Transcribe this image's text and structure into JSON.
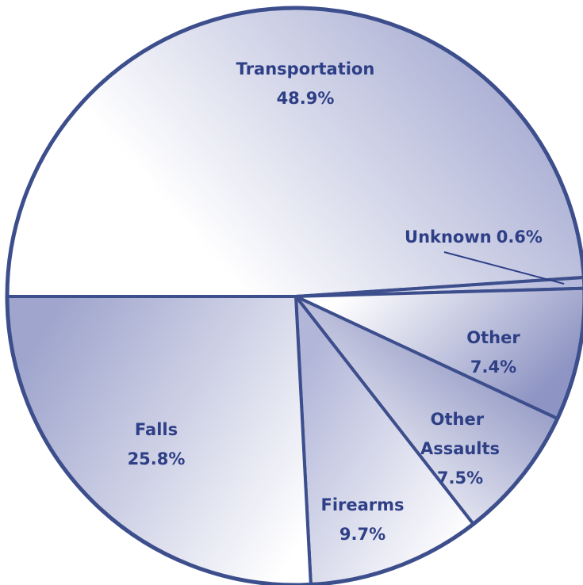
{
  "chart_data": {
    "type": "pie",
    "categories": [
      "Transportation",
      "Unknown",
      "Other",
      "Other Assaults",
      "Firearms",
      "Falls"
    ],
    "values": [
      48.9,
      0.6,
      7.4,
      7.5,
      9.7,
      25.8
    ],
    "value_labels": [
      "48.9%",
      "0.6%",
      "7.4%",
      "7.5%",
      "9.7%",
      "25.8%"
    ],
    "colors": [
      "#a9aed3",
      "#b4b8da",
      "#8e94c3",
      "#7f86ba",
      "#b2b6d8",
      "#9fa5cd"
    ]
  }
}
